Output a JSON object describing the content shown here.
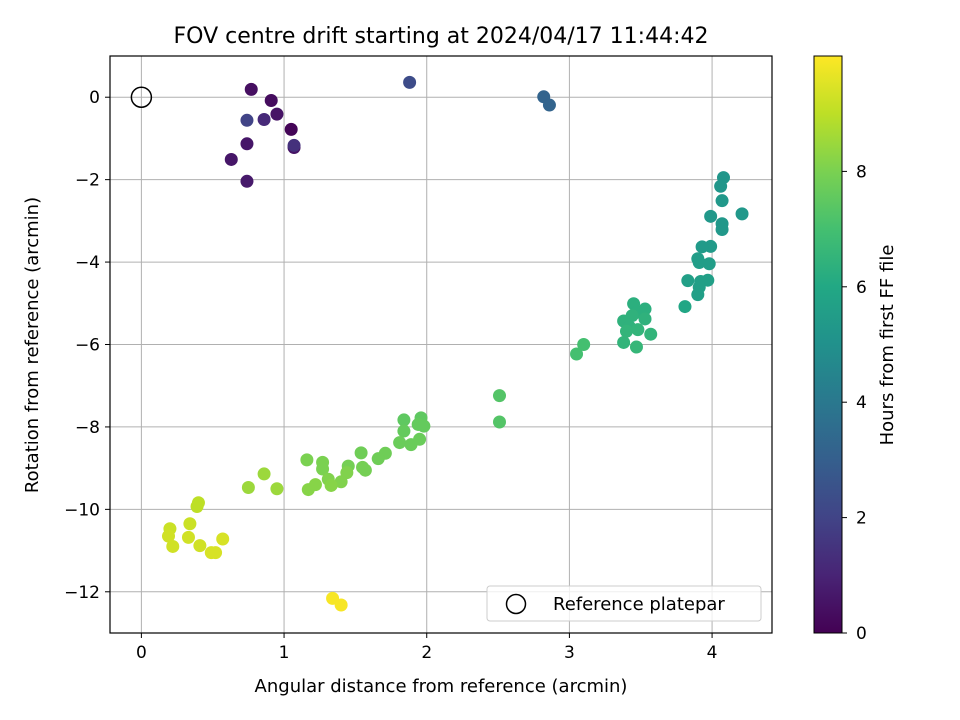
{
  "chart_data": {
    "type": "scatter",
    "title": "FOV centre drift starting at 2024/04/17 11:44:42",
    "xlabel": "Angular distance from reference (arcmin)",
    "ylabel": "Rotation from reference (arcmin)",
    "xlim": [
      -0.22,
      4.42
    ],
    "ylim": [
      -13.0,
      1.0
    ],
    "xticks": [
      0,
      1,
      2,
      3,
      4
    ],
    "yticks": [
      -12,
      -10,
      -8,
      -6,
      -4,
      -2,
      0
    ],
    "grid": true,
    "colormap": "viridis",
    "colorbar": {
      "label": "Hours from first FF file",
      "range": [
        0,
        10
      ],
      "ticks": [
        0,
        2,
        4,
        6,
        8
      ]
    },
    "legend": {
      "position": "lower-right",
      "entries": [
        "Reference platepar"
      ]
    },
    "reference": {
      "x": 0,
      "y": 0,
      "label": "Reference platepar"
    },
    "series": [
      {
        "points": [
          {
            "x": 1.05,
            "y": -0.78,
            "c": 0.1
          },
          {
            "x": 0.91,
            "y": -0.08,
            "c": 0.3
          },
          {
            "x": 0.77,
            "y": 0.19,
            "c": 0.4
          },
          {
            "x": 0.95,
            "y": -0.41,
            "c": 0.5
          },
          {
            "x": 1.07,
            "y": -1.22,
            "c": 0.5
          },
          {
            "x": 0.63,
            "y": -1.51,
            "c": 0.6
          },
          {
            "x": 0.74,
            "y": -1.13,
            "c": 0.6
          },
          {
            "x": 0.74,
            "y": -2.04,
            "c": 0.7
          },
          {
            "x": 0.86,
            "y": -0.54,
            "c": 1.2
          },
          {
            "x": 1.07,
            "y": -1.17,
            "c": 1.4
          },
          {
            "x": 0.74,
            "y": -0.56,
            "c": 2.0
          },
          {
            "x": 1.88,
            "y": 0.36,
            "c": 2.3
          },
          {
            "x": 2.82,
            "y": 0.01,
            "c": 3.2
          },
          {
            "x": 2.86,
            "y": -0.19,
            "c": 3.2
          },
          {
            "x": 4.08,
            "y": -1.95,
            "c": 5.2
          },
          {
            "x": 4.06,
            "y": -2.16,
            "c": 5.2
          },
          {
            "x": 4.07,
            "y": -2.51,
            "c": 5.3
          },
          {
            "x": 3.99,
            "y": -2.89,
            "c": 5.3
          },
          {
            "x": 4.07,
            "y": -3.07,
            "c": 5.3
          },
          {
            "x": 4.07,
            "y": -3.21,
            "c": 5.3
          },
          {
            "x": 4.21,
            "y": -2.83,
            "c": 5.3
          },
          {
            "x": 3.99,
            "y": -3.62,
            "c": 5.4
          },
          {
            "x": 3.93,
            "y": -3.63,
            "c": 5.4
          },
          {
            "x": 3.9,
            "y": -3.92,
            "c": 5.5
          },
          {
            "x": 3.91,
            "y": -4.01,
            "c": 5.5
          },
          {
            "x": 3.98,
            "y": -4.04,
            "c": 5.5
          },
          {
            "x": 3.97,
            "y": -4.44,
            "c": 5.6
          },
          {
            "x": 3.92,
            "y": -4.47,
            "c": 5.6
          },
          {
            "x": 3.83,
            "y": -4.45,
            "c": 5.6
          },
          {
            "x": 3.91,
            "y": -4.61,
            "c": 5.6
          },
          {
            "x": 3.9,
            "y": -4.79,
            "c": 5.6
          },
          {
            "x": 3.81,
            "y": -5.08,
            "c": 5.9
          },
          {
            "x": 3.45,
            "y": -5.01,
            "c": 6.3
          },
          {
            "x": 3.53,
            "y": -5.14,
            "c": 6.3
          },
          {
            "x": 3.47,
            "y": -5.22,
            "c": 6.3
          },
          {
            "x": 3.44,
            "y": -5.3,
            "c": 6.4
          },
          {
            "x": 3.53,
            "y": -5.38,
            "c": 6.4
          },
          {
            "x": 3.38,
            "y": -5.43,
            "c": 6.4
          },
          {
            "x": 3.42,
            "y": -5.57,
            "c": 6.4
          },
          {
            "x": 3.48,
            "y": -5.64,
            "c": 6.5
          },
          {
            "x": 3.4,
            "y": -5.68,
            "c": 6.5
          },
          {
            "x": 3.57,
            "y": -5.75,
            "c": 6.5
          },
          {
            "x": 3.38,
            "y": -5.95,
            "c": 6.5
          },
          {
            "x": 3.47,
            "y": -6.06,
            "c": 6.6
          },
          {
            "x": 3.1,
            "y": -6.0,
            "c": 7.0
          },
          {
            "x": 3.05,
            "y": -6.23,
            "c": 7.0
          },
          {
            "x": 2.51,
            "y": -7.24,
            "c": 7.3
          },
          {
            "x": 2.51,
            "y": -7.88,
            "c": 7.3
          },
          {
            "x": 1.96,
            "y": -7.78,
            "c": 7.5
          },
          {
            "x": 1.84,
            "y": -7.83,
            "c": 7.5
          },
          {
            "x": 1.94,
            "y": -7.94,
            "c": 7.6
          },
          {
            "x": 1.98,
            "y": -7.98,
            "c": 7.6
          },
          {
            "x": 1.84,
            "y": -8.1,
            "c": 7.6
          },
          {
            "x": 1.95,
            "y": -8.3,
            "c": 7.7
          },
          {
            "x": 1.81,
            "y": -8.38,
            "c": 7.7
          },
          {
            "x": 1.89,
            "y": -8.43,
            "c": 7.7
          },
          {
            "x": 1.71,
            "y": -8.64,
            "c": 7.8
          },
          {
            "x": 1.66,
            "y": -8.77,
            "c": 7.8
          },
          {
            "x": 1.54,
            "y": -8.63,
            "c": 7.8
          },
          {
            "x": 1.45,
            "y": -8.95,
            "c": 7.9
          },
          {
            "x": 1.55,
            "y": -8.98,
            "c": 7.9
          },
          {
            "x": 1.57,
            "y": -9.05,
            "c": 7.9
          },
          {
            "x": 1.27,
            "y": -8.86,
            "c": 8.0
          },
          {
            "x": 1.16,
            "y": -8.8,
            "c": 8.0
          },
          {
            "x": 1.27,
            "y": -9.02,
            "c": 8.0
          },
          {
            "x": 1.44,
            "y": -9.11,
            "c": 8.1
          },
          {
            "x": 1.31,
            "y": -9.27,
            "c": 8.1
          },
          {
            "x": 1.4,
            "y": -9.33,
            "c": 8.1
          },
          {
            "x": 1.22,
            "y": -9.4,
            "c": 8.2
          },
          {
            "x": 1.33,
            "y": -9.42,
            "c": 8.2
          },
          {
            "x": 1.17,
            "y": -9.52,
            "c": 8.2
          },
          {
            "x": 0.86,
            "y": -9.14,
            "c": 8.5
          },
          {
            "x": 0.75,
            "y": -9.47,
            "c": 8.5
          },
          {
            "x": 0.95,
            "y": -9.5,
            "c": 8.5
          },
          {
            "x": 0.4,
            "y": -9.84,
            "c": 9.0
          },
          {
            "x": 0.39,
            "y": -9.93,
            "c": 9.0
          },
          {
            "x": 0.2,
            "y": -10.47,
            "c": 9.2
          },
          {
            "x": 0.34,
            "y": -10.35,
            "c": 9.2
          },
          {
            "x": 0.19,
            "y": -10.65,
            "c": 9.3
          },
          {
            "x": 0.33,
            "y": -10.68,
            "c": 9.3
          },
          {
            "x": 0.22,
            "y": -10.9,
            "c": 9.3
          },
          {
            "x": 0.41,
            "y": -10.88,
            "c": 9.3
          },
          {
            "x": 0.57,
            "y": -10.72,
            "c": 9.4
          },
          {
            "x": 0.49,
            "y": -11.05,
            "c": 9.4
          },
          {
            "x": 0.52,
            "y": -11.05,
            "c": 9.4
          },
          {
            "x": 1.34,
            "y": -12.16,
            "c": 9.9
          },
          {
            "x": 1.4,
            "y": -12.32,
            "c": 9.9
          }
        ]
      }
    ]
  }
}
